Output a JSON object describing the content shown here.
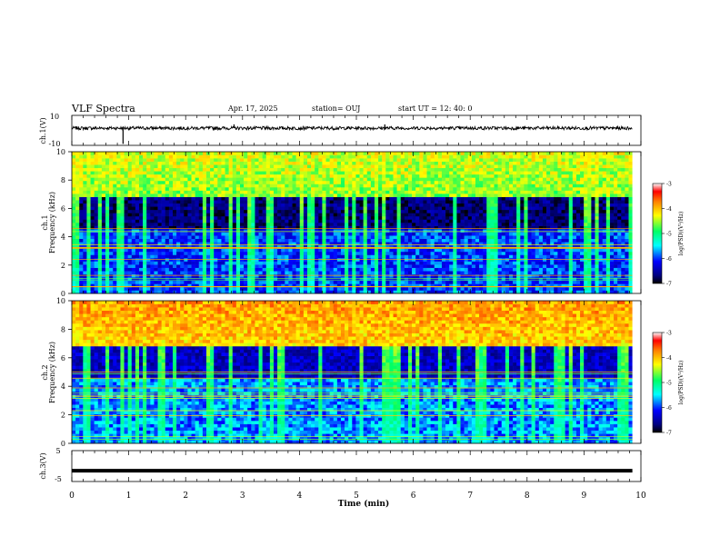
{
  "header": {
    "title": "VLF Spectra",
    "date": "Apr. 17, 2025",
    "station": "station= OUJ",
    "start": "start  UT  =  12: 40: 0"
  },
  "chart_data": [
    {
      "type": "line",
      "id": "ch1-waveform",
      "ylabel": "ch.1(V)",
      "ylim": [
        -10,
        10
      ],
      "ytick_labels": [
        "10",
        "-10"
      ],
      "baseline": 1.5,
      "spikes": [
        {
          "x": 0.9,
          "y": -9
        },
        {
          "x": 2.85,
          "y": 4
        },
        {
          "x": 5.5,
          "y": 4
        }
      ]
    },
    {
      "type": "heatmap",
      "id": "ch1-spectrogram",
      "ylabel_channel": "ch.1",
      "ylabel": "Frequency  (kHz)",
      "ylim": [
        0,
        10
      ],
      "ytick_labels": [
        "0",
        "2",
        "4",
        "6",
        "8",
        "10"
      ],
      "colorbar": {
        "label": "log(PSD)(V²/Hz)",
        "range": [
          -7,
          -3
        ],
        "tick_labels": [
          "-3",
          "-4",
          "-5",
          "-6",
          "-7"
        ]
      }
    },
    {
      "type": "heatmap",
      "id": "ch2-spectrogram",
      "ylabel_channel": "ch.2",
      "ylabel": "Frequency  (kHz)",
      "ylim": [
        0,
        10
      ],
      "ytick_labels": [
        "0",
        "2",
        "4",
        "6",
        "8",
        "10"
      ],
      "colorbar": {
        "label": "log(PSD)(V²/Hz)",
        "range": [
          -7,
          -3
        ],
        "tick_labels": [
          "-3",
          "-4",
          "-5",
          "-6",
          "-7"
        ]
      }
    },
    {
      "type": "line",
      "id": "ch3-waveform",
      "ylabel": "ch.3(V)",
      "ylim": [
        -5,
        5
      ],
      "ytick_labels": [
        "5",
        "-5"
      ],
      "values_constant": -1.5
    }
  ],
  "xaxis": {
    "label": "Time  (min)",
    "xlim": [
      0,
      10
    ],
    "tick_labels": [
      "0",
      "1",
      "2",
      "3",
      "4",
      "5",
      "6",
      "7",
      "8",
      "9",
      "10"
    ],
    "data_end": 9.85
  }
}
